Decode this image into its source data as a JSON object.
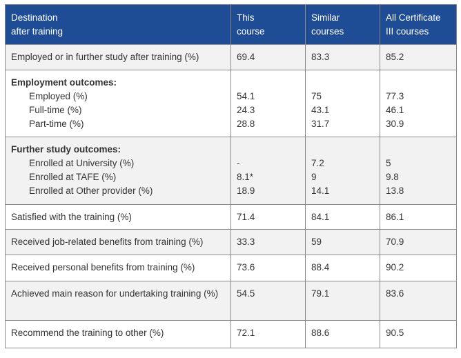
{
  "header": {
    "col1": [
      "Destination",
      "after training"
    ],
    "col2": [
      "This",
      "course"
    ],
    "col3": [
      "Similar",
      "courses"
    ],
    "col4": [
      "All Certificate",
      "III courses"
    ]
  },
  "rows": [
    {
      "label": "Employed or in further study after training (%)",
      "this": "69.4",
      "similar": "83.3",
      "all": "85.2"
    },
    {
      "group": "Employment outcomes:",
      "items": [
        {
          "label": "Employed (%)",
          "this": "54.1",
          "similar": "75",
          "all": "77.3"
        },
        {
          "label": "Full-time (%)",
          "this": "24.3",
          "similar": "43.1",
          "all": "46.1"
        },
        {
          "label": "Part-time (%)",
          "this": "28.8",
          "similar": "31.7",
          "all": "30.9"
        }
      ]
    },
    {
      "group": "Further study outcomes:",
      "items": [
        {
          "label": "Enrolled at University (%)",
          "this": "-",
          "similar": "7.2",
          "all": "5"
        },
        {
          "label": "Enrolled at TAFE (%)",
          "this": "8.1*",
          "similar": "9",
          "all": "9.8"
        },
        {
          "label": "Enrolled at Other provider (%)",
          "this": "18.9",
          "similar": "14.1",
          "all": "13.8"
        }
      ]
    },
    {
      "label": "Satisfied with the training (%)",
      "this": "71.4",
      "similar": "84.1",
      "all": "86.1"
    },
    {
      "label": "Received job-related benefits from training (%)",
      "this": "33.3",
      "similar": "59",
      "all": "70.9"
    },
    {
      "label": "Received personal benefits from training (%)",
      "this": "73.6",
      "similar": "88.4",
      "all": "90.2"
    },
    {
      "label": "Achieved main reason for undertaking training (%)",
      "this": "54.5",
      "similar": "79.1",
      "all": "83.6"
    },
    {
      "label": "Recommend the training to other (%)",
      "this": "72.1",
      "similar": "88.6",
      "all": "90.5"
    }
  ],
  "colors": {
    "header_bg": "#1e4d96",
    "header_text": "#ffffff",
    "alt_row_bg": "#f2f2f2",
    "border": "#8a8a8a",
    "text": "#333333"
  }
}
